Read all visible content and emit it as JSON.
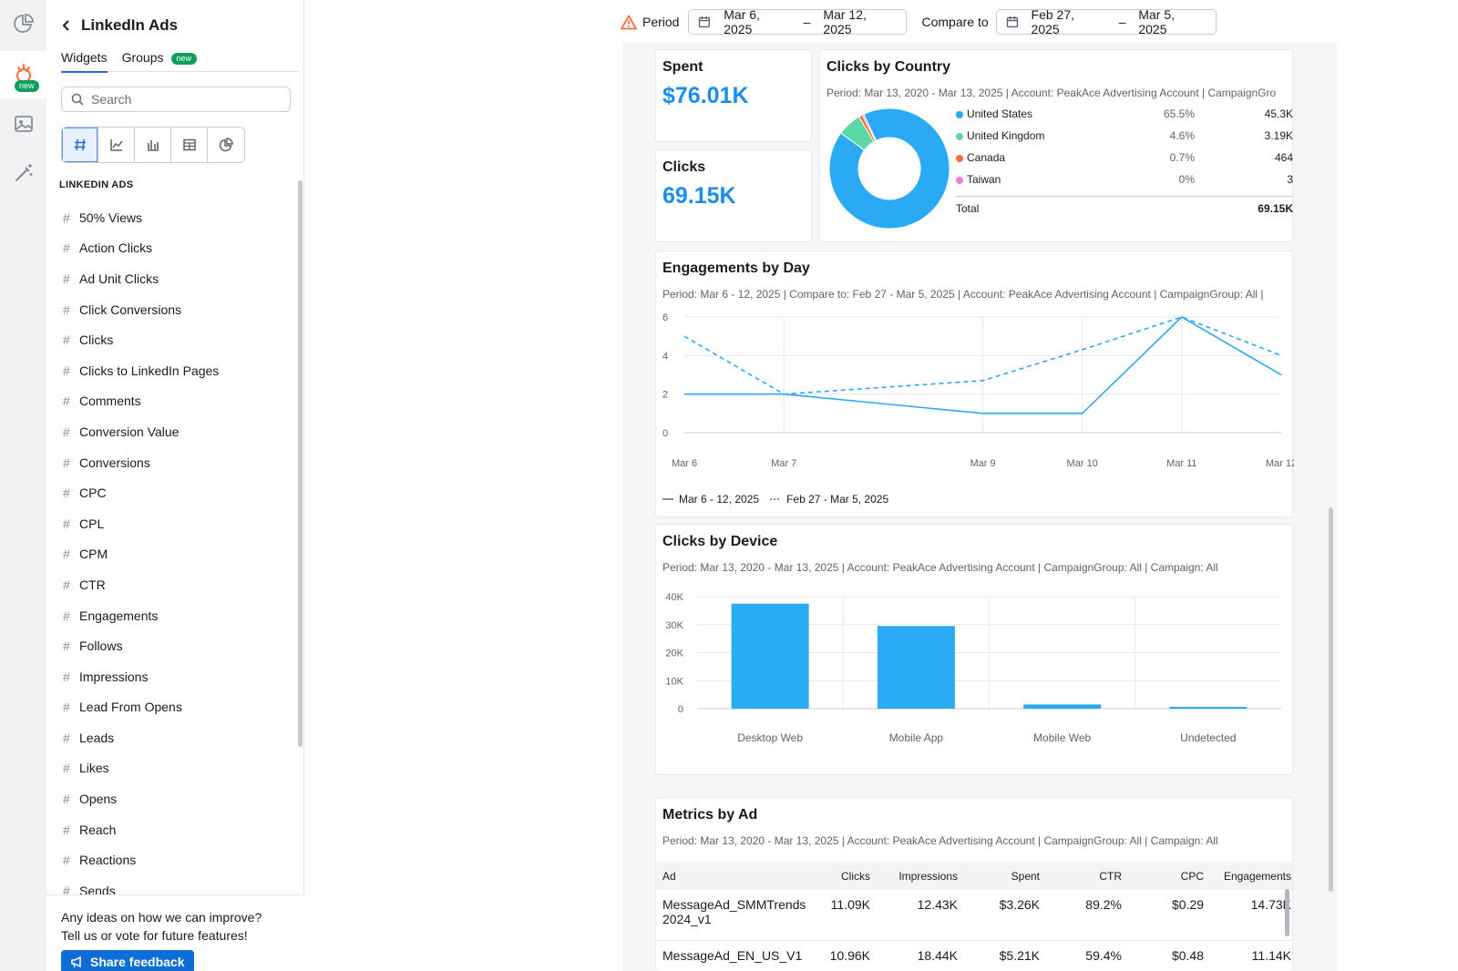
{
  "rail": {
    "items": [
      {
        "name": "dashboards",
        "icon": "pie-chart-icon"
      },
      {
        "name": "ads",
        "icon": "ads-icon",
        "badge": "new"
      },
      {
        "name": "images",
        "icon": "image-icon"
      },
      {
        "name": "tools",
        "icon": "magic-wand-icon"
      }
    ]
  },
  "sidebar": {
    "title": "LinkedIn Ads",
    "tabs": [
      {
        "label": "Widgets",
        "active": true
      },
      {
        "label": "Groups",
        "badge": "new"
      }
    ],
    "search_placeholder": "Search",
    "widget_types": [
      "number-icon",
      "line-chart-icon",
      "bar-chart-icon",
      "table-icon",
      "pie-icon"
    ],
    "section_label": "LINKEDIN ADS",
    "items": [
      "50% Views",
      "Action Clicks",
      "Ad Unit Clicks",
      "Click Conversions",
      "Clicks",
      "Clicks to LinkedIn Pages",
      "Comments",
      "Conversion Value",
      "Conversions",
      "CPC",
      "CPL",
      "CPM",
      "CTR",
      "Engagements",
      "Follows",
      "Impressions",
      "Lead From Opens",
      "Leads",
      "Likes",
      "Opens",
      "Reach",
      "Reactions",
      "Sends"
    ],
    "feedback": {
      "line1": "Any ideas on how we can improve?",
      "line2": "Tell us or vote for future features!",
      "button": "Share feedback"
    }
  },
  "topbar": {
    "period_label": "Period",
    "period_start": "Mar 6, 2025",
    "period_end": "Mar 12, 2025",
    "compare_label": "Compare to",
    "compare_start": "Feb 27, 2025",
    "compare_end": "Mar 5, 2025",
    "separator": "–"
  },
  "spent": {
    "title": "Spent",
    "value": "$76.01K"
  },
  "clicks": {
    "title": "Clicks",
    "value": "69.15K"
  },
  "country": {
    "title": "Clicks by Country",
    "meta": "Period: Mar 13, 2020 - Mar 13, 2025 | Account: PeakAce Advertising Account | CampaignGro",
    "rows": [
      {
        "name": "United States",
        "pct": "65.5%",
        "value": "45.3K",
        "color": "#2aaaf5"
      },
      {
        "name": "United Kingdom",
        "pct": "4.6%",
        "value": "3.19K",
        "color": "#5cd8a4"
      },
      {
        "name": "Canada",
        "pct": "0.7%",
        "value": "464",
        "color": "#ff6b3d"
      },
      {
        "name": "Taiwan",
        "pct": "0%",
        "value": "3",
        "color": "#f57bd4"
      }
    ],
    "total_label": "Total",
    "total_value": "69.15K"
  },
  "engagements": {
    "title": "Engagements by Day",
    "meta": "Period: Mar 6 - 12, 2025 | Compare to: Feb 27 - Mar 5, 2025 | Account: PeakAce Advertising Account | CampaignGroup: All |",
    "legend_current": "Mar 6 - 12, 2025",
    "legend_compare": "Feb 27 - Mar 5, 2025"
  },
  "device": {
    "title": "Clicks by Device",
    "meta": "Period: Mar 13, 2020 - Mar 13, 2025 | Account: PeakAce Advertising Account | CampaignGroup: All | Campaign: All"
  },
  "metrics": {
    "title": "Metrics by Ad",
    "meta": "Period: Mar 13, 2020 - Mar 13, 2025 | Account: PeakAce Advertising Account | CampaignGroup: All | Campaign: All",
    "columns": [
      "Ad",
      "Clicks",
      "Impressions",
      "Spent",
      "CTR",
      "CPC",
      "Engagements"
    ],
    "rows": [
      [
        "MessageAd_SMMTrends2024_v1",
        "11.09K",
        "12.43K",
        "$3.26K",
        "89.2%",
        "$0.29",
        "14.73K"
      ],
      [
        "MessageAd_EN_US_V1",
        "10.96K",
        "18.44K",
        "$5.21K",
        "59.4%",
        "$0.48",
        "11.14K"
      ]
    ]
  },
  "chart_data": [
    {
      "type": "pie",
      "title": "Clicks by Country",
      "categories": [
        "United States",
        "United Kingdom",
        "Canada",
        "Taiwan"
      ],
      "values": [
        45300,
        3190,
        464,
        3
      ],
      "colors": [
        "#2aaaf5",
        "#5cd8a4",
        "#ff6b3d",
        "#f57bd4"
      ],
      "donut": true
    },
    {
      "type": "line",
      "title": "Engagements by Day",
      "x": [
        "Mar 6",
        "Mar 7",
        "Mar 9",
        "Mar 10",
        "Mar 11",
        "Mar 12"
      ],
      "x_days": [
        6,
        7,
        9,
        10,
        11,
        12
      ],
      "y_ticks": [
        0,
        2,
        4,
        6
      ],
      "ylim": [
        0,
        6
      ],
      "series": [
        {
          "name": "Mar 6 - 12, 2025",
          "style": "solid",
          "x": [
            6,
            7,
            9,
            10,
            11,
            12
          ],
          "values": [
            2,
            2,
            1,
            1,
            6,
            3
          ]
        },
        {
          "name": "Feb 27 - Mar 5, 2025",
          "style": "dashed",
          "x": [
            6,
            7,
            9,
            10,
            11,
            12
          ],
          "values": [
            5,
            2,
            2.7,
            4.3,
            6,
            4
          ]
        }
      ],
      "color": "#2aaaf5"
    },
    {
      "type": "bar",
      "title": "Clicks by Device",
      "categories": [
        "Desktop Web",
        "Mobile App",
        "Mobile Web",
        "Undetected"
      ],
      "values": [
        37500,
        29500,
        1500,
        500
      ],
      "y_ticks": [
        "0",
        "10K",
        "20K",
        "30K",
        "40K"
      ],
      "ylim": [
        0,
        40000
      ],
      "color": "#2aaaf5"
    }
  ]
}
